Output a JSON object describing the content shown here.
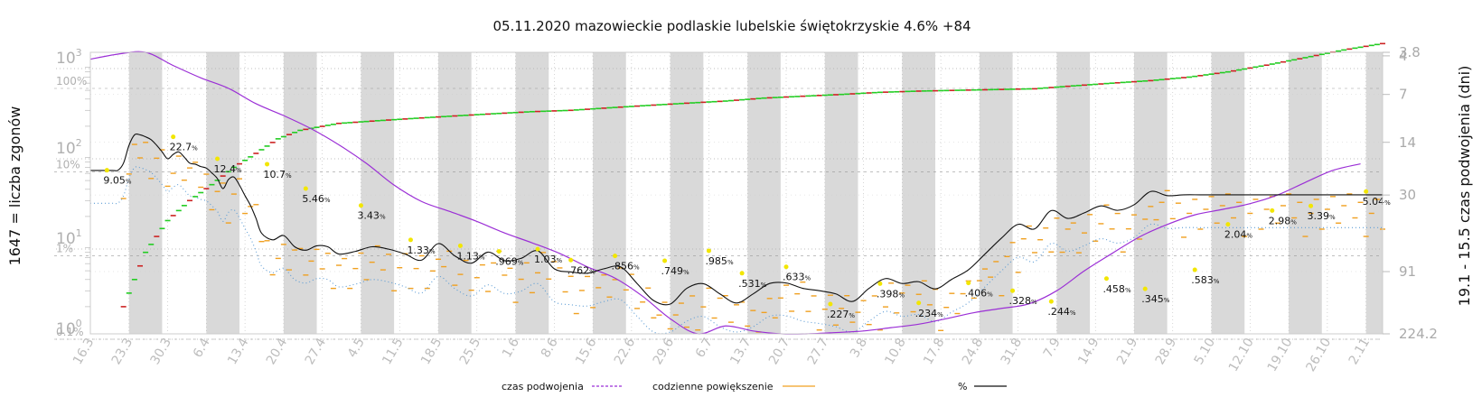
{
  "chart_data": {
    "type": "line",
    "title": "05.11.2020 mazowieckie podlaskie lubelskie świętokrzyskie 4.6% +84",
    "ylabel_left": "1647 = liczba zgonów",
    "ylabel_right": "19.1 - 15.5 czas podwojenia (dni)",
    "x_ticks": [
      "16.3",
      "23.3",
      "30.3",
      "6.4",
      "13.4",
      "20.4",
      "27.4",
      "4.5",
      "11.5",
      "18.5",
      "25.5",
      "1.6",
      "8.6",
      "15.6",
      "22.6",
      "29.6",
      "6.7",
      "13.7",
      "20.7",
      "27.7",
      "3.8",
      "10.8",
      "17.8",
      "24.8",
      "31.8",
      "7.9",
      "14.9",
      "21.9",
      "28.9",
      "5.10",
      "12.10",
      "19.10",
      "26.10",
      "2.11"
    ],
    "left_ticks": [
      {
        "base": "10",
        "exp": "0",
        "value": 1
      },
      {
        "base": "10",
        "exp": "1",
        "value": 10
      },
      {
        "base": "10",
        "exp": "2",
        "value": 100
      },
      {
        "base": "10",
        "exp": "3",
        "value": 1000
      }
    ],
    "pct_ticks": [
      {
        "label": "0.1%",
        "value": 0.1
      },
      {
        "label": "1%",
        "value": 1
      },
      {
        "label": "10%",
        "value": 10
      },
      {
        "label": "100%",
        "value": 100
      }
    ],
    "right_ticks": [
      {
        "label": "3.8",
        "value": 3.8
      },
      {
        "label": "4",
        "value": 4
      },
      {
        "label": "7",
        "value": 7
      },
      {
        "label": "14",
        "value": 14
      },
      {
        "label": "30",
        "value": 30
      },
      {
        "label": "91",
        "value": 91
      },
      {
        "label": "224.2",
        "value": 224.2
      }
    ],
    "pct_labels": [
      {
        "x": "19.3",
        "text": "9.05",
        "value": 9.05
      },
      {
        "x": "31.3",
        "text": "22.7",
        "value": 22.7
      },
      {
        "x": "8.4",
        "text": "12.4",
        "value": 12.4
      },
      {
        "x": "17.4",
        "text": "10.7",
        "value": 10.7
      },
      {
        "x": "24.4",
        "text": "5.46",
        "value": 5.46
      },
      {
        "x": "4.5",
        "text": "3.43",
        "value": 3.43
      },
      {
        "x": "13.5",
        "text": "1.33",
        "value": 1.33
      },
      {
        "x": "22.5",
        "text": "1.13",
        "value": 1.13
      },
      {
        "x": "29.5",
        "text": ".969",
        "value": 0.969
      },
      {
        "x": "5.6",
        "text": "1.03",
        "value": 1.03
      },
      {
        "x": "11.6",
        "text": ".762",
        "value": 0.762
      },
      {
        "x": "19.6",
        "text": ".856",
        "value": 0.856
      },
      {
        "x": "28.6",
        "text": ".749",
        "value": 0.749
      },
      {
        "x": "6.7",
        "text": ".985",
        "value": 0.985
      },
      {
        "x": "12.7",
        "text": ".531",
        "value": 0.531
      },
      {
        "x": "20.7",
        "text": ".633",
        "value": 0.633
      },
      {
        "x": "28.7",
        "text": ".227",
        "value": 0.227
      },
      {
        "x": "6.8",
        "text": ".398",
        "value": 0.398
      },
      {
        "x": "13.8",
        "text": ".234",
        "value": 0.234
      },
      {
        "x": "22.8",
        "text": ".406",
        "value": 0.406
      },
      {
        "x": "30.8",
        "text": ".328",
        "value": 0.328
      },
      {
        "x": "6.9",
        "text": ".244",
        "value": 0.244
      },
      {
        "x": "16.9",
        "text": ".458",
        "value": 0.458
      },
      {
        "x": "23.9",
        "text": ".345",
        "value": 0.345
      },
      {
        "x": "2.10",
        "text": ".583",
        "value": 0.583
      },
      {
        "x": "8.10",
        "text": "2.04",
        "value": 2.04
      },
      {
        "x": "16.10",
        "text": "2.98",
        "value": 2.98
      },
      {
        "x": "23.10",
        "text": "3.39",
        "value": 3.39
      },
      {
        "x": "2.11",
        "text": "5.04",
        "value": 5.04
      }
    ],
    "pct_series_days": [
      0,
      4,
      5,
      6,
      7,
      8,
      9,
      10,
      11,
      12,
      13,
      14,
      15,
      16,
      17,
      18,
      19,
      20,
      21,
      22,
      23,
      24,
      25,
      26,
      27,
      28,
      29,
      30,
      31,
      33,
      35,
      37,
      39,
      41,
      43,
      45,
      48,
      51,
      54,
      57,
      60,
      63,
      66,
      69,
      72,
      75,
      78,
      81,
      84,
      87,
      90,
      93,
      96,
      99,
      102,
      105,
      108,
      111,
      114,
      117,
      120,
      123,
      126,
      129,
      132,
      135,
      138,
      141,
      144,
      147,
      150,
      153,
      156,
      159,
      162,
      165,
      168,
      171,
      174,
      177,
      180,
      183,
      186,
      189,
      192,
      195,
      198,
      201,
      204,
      207,
      210,
      213,
      216,
      219,
      222,
      225,
      228,
      231,
      234
    ],
    "pct_series_values": [
      9,
      9,
      9.05,
      11,
      18,
      24,
      24,
      22.7,
      21,
      18,
      15,
      12.4,
      14,
      15,
      13,
      11,
      10.7,
      10,
      9.6,
      8.4,
      7.2,
      5.46,
      7,
      7.5,
      6,
      4.5,
      3.43,
      2.4,
      1.6,
      1.33,
      1.5,
      1.1,
      1,
      1.13,
      1.1,
      0.9,
      0.969,
      1.1,
      1.03,
      0.9,
      0.762,
      1.2,
      0.856,
      0.7,
      0.95,
      0.749,
      0.8,
      0.985,
      0.6,
      0.55,
      0.531,
      0.6,
      0.633,
      0.4,
      0.25,
      0.227,
      0.35,
      0.398,
      0.3,
      0.234,
      0.3,
      0.4,
      0.406,
      0.35,
      0.328,
      0.3,
      0.244,
      0.35,
      0.458,
      0.4,
      0.42,
      0.345,
      0.45,
      0.583,
      0.9,
      1.4,
      2.04,
      1.8,
      2.98,
      2.4,
      2.8,
      3.39,
      3,
      3.5,
      5.04,
      4.5,
      4.6,
      4.6,
      4.6,
      4.6,
      4.6,
      4.6,
      4.6,
      4.6,
      4.6,
      4.6,
      4.6,
      4.6,
      4.6
    ],
    "doubling_series_days": [
      0,
      5,
      10,
      15,
      20,
      25,
      30,
      35,
      40,
      45,
      50,
      55,
      60,
      65,
      70,
      75,
      80,
      85,
      90,
      95,
      100,
      105,
      110,
      115,
      120,
      125,
      130,
      135,
      140,
      145,
      150,
      155,
      160,
      165,
      170,
      175,
      180,
      185,
      190,
      195,
      200,
      205,
      210,
      215,
      220,
      225,
      230
    ],
    "doubling_series_values": [
      4.2,
      3.9,
      3.8,
      4.6,
      5.5,
      6.4,
      8,
      9.5,
      11.5,
      14.5,
      19,
      26,
      33,
      38,
      44,
      52,
      60,
      70,
      85,
      100,
      130,
      180,
      224,
      200,
      215,
      224,
      224,
      220,
      215,
      205,
      195,
      180,
      165,
      155,
      145,
      120,
      90,
      70,
      55,
      46,
      40,
      37,
      34,
      30,
      25,
      21,
      19.1
    ],
    "deaths_series_days": [
      6,
      10,
      14,
      18,
      22,
      26,
      30,
      34,
      38,
      45,
      52,
      59,
      66,
      73,
      80,
      87,
      94,
      101,
      108,
      115,
      122,
      129,
      136,
      143,
      150,
      157,
      164,
      171,
      178,
      185,
      192,
      199,
      206,
      213,
      220,
      227,
      234
    ],
    "deaths_series_values": [
      2,
      8,
      18,
      30,
      45,
      70,
      100,
      145,
      180,
      215,
      230,
      245,
      260,
      275,
      290,
      300,
      320,
      340,
      360,
      380,
      410,
      430,
      450,
      475,
      490,
      500,
      510,
      520,
      560,
      600,
      640,
      700,
      800,
      950,
      1150,
      1400,
      1647
    ],
    "legend": [
      "czas podwojenia",
      "codzienne powiększenie",
      "%"
    ],
    "colors": {
      "pct": "#111111",
      "doubling": "#9b2fd6",
      "daily": "#f0a020",
      "deaths_up": "#22cc22",
      "deaths_down": "#cc2222",
      "mean": "#5a9bd5",
      "band": "#d9d9d9"
    }
  }
}
